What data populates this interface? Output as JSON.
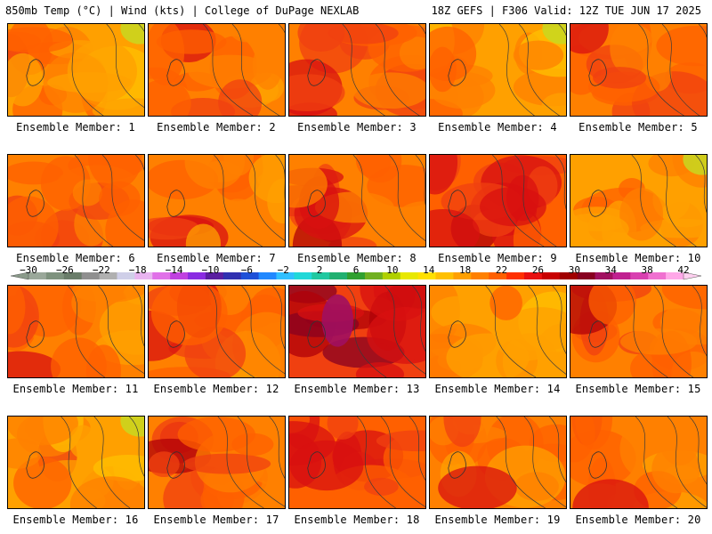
{
  "header": {
    "left": "850mb Temp (°C) | Wind (kts) | College of DuPage NEXLAB",
    "right": "18Z GEFS | F306 Valid: 12Z TUE JUN 17 2025"
  },
  "colorbar": {
    "labels": [
      "-30",
      "-26",
      "-22",
      "-18",
      "-14",
      "-10",
      "-6",
      "-2",
      "2",
      "6",
      "10",
      "14",
      "18",
      "22",
      "26",
      "30",
      "34",
      "38",
      "42"
    ],
    "colors": [
      "#9aa89a",
      "#7e927e",
      "#6a7d6a",
      "#8f8f8f",
      "#b0b0b0",
      "#cfcfe8",
      "#e8b4f0",
      "#e070e8",
      "#c040e0",
      "#8a2be2",
      "#5a1ea0",
      "#3030b0",
      "#1e50d8",
      "#2088ff",
      "#30c0ff",
      "#20d8d8",
      "#20c8a0",
      "#20b070",
      "#30a030",
      "#70b020",
      "#b0d000",
      "#e8e800",
      "#ffe000",
      "#ffc000",
      "#ffa000",
      "#ff8000",
      "#ff6000",
      "#ff3000",
      "#e81010",
      "#c80000",
      "#a00000",
      "#880020",
      "#a01060",
      "#c02090",
      "#d840b0",
      "#f070d0",
      "#ffa8e8"
    ]
  },
  "members": [
    {
      "label": "Ensemble Member: 1",
      "heat": 0.35
    },
    {
      "label": "Ensemble Member: 2",
      "heat": 0.5
    },
    {
      "label": "Ensemble Member: 3",
      "heat": 0.6
    },
    {
      "label": "Ensemble Member: 4",
      "heat": 0.35
    },
    {
      "label": "Ensemble Member: 5",
      "heat": 0.55
    },
    {
      "label": "Ensemble Member: 6",
      "heat": 0.5
    },
    {
      "label": "Ensemble Member: 7",
      "heat": 0.45
    },
    {
      "label": "Ensemble Member: 8",
      "heat": 0.6
    },
    {
      "label": "Ensemble Member: 9",
      "heat": 0.7
    },
    {
      "label": "Ensemble Member: 10",
      "heat": 0.35
    },
    {
      "label": "Ensemble Member: 11",
      "heat": 0.45
    },
    {
      "label": "Ensemble Member: 12",
      "heat": 0.5
    },
    {
      "label": "Ensemble Member: 13",
      "heat": 0.85
    },
    {
      "label": "Ensemble Member: 14",
      "heat": 0.4
    },
    {
      "label": "Ensemble Member: 15",
      "heat": 0.55
    },
    {
      "label": "Ensemble Member: 16",
      "heat": 0.3
    },
    {
      "label": "Ensemble Member: 17",
      "heat": 0.55
    },
    {
      "label": "Ensemble Member: 18",
      "heat": 0.65
    },
    {
      "label": "Ensemble Member: 19",
      "heat": 0.45
    },
    {
      "label": "Ensemble Member: 20",
      "heat": 0.45
    }
  ]
}
